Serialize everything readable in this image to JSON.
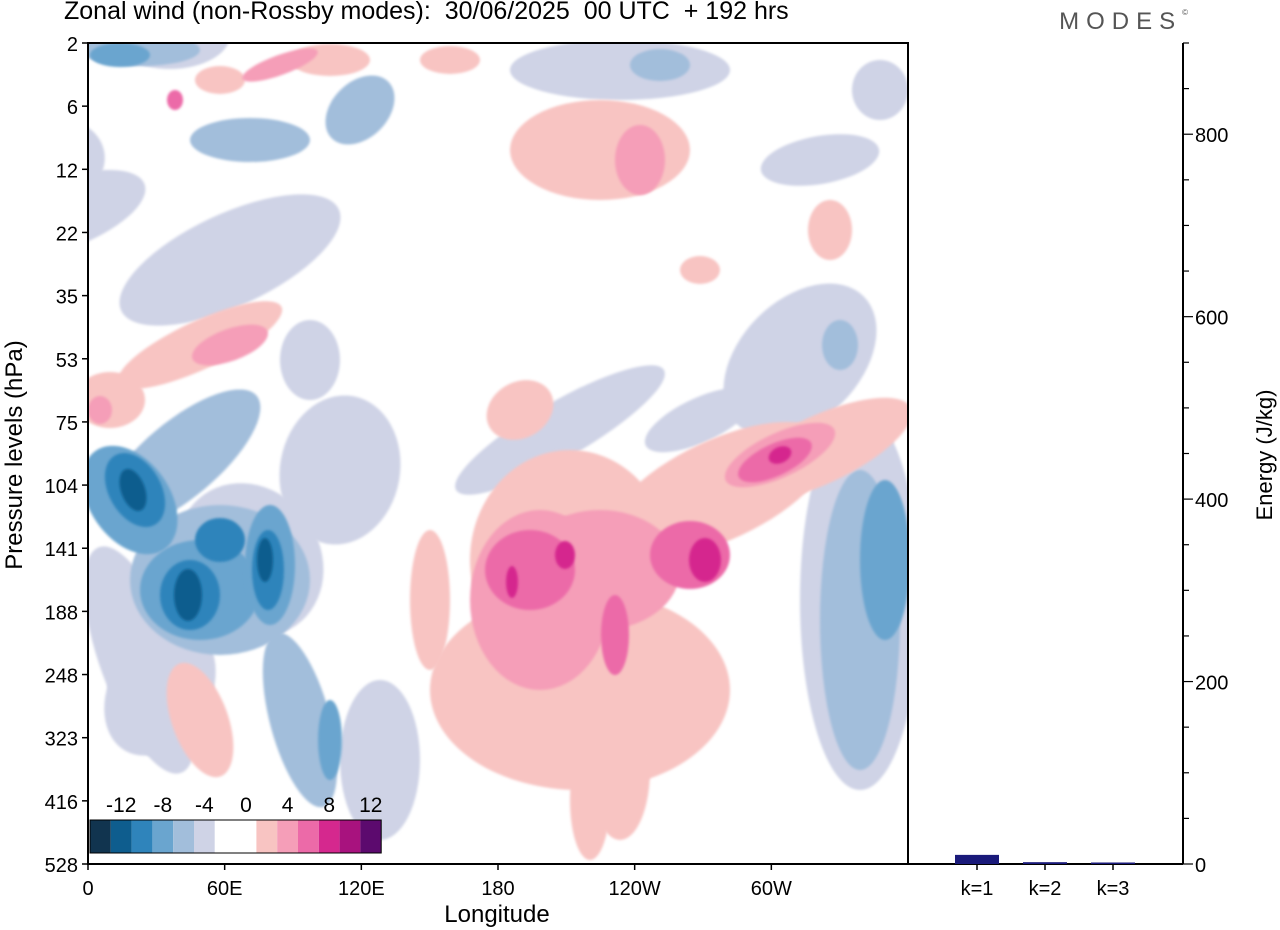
{
  "header": {
    "title": "Zonal wind (non-Rossby modes):  30/06/2025  00 UTC  + 192 hrs",
    "brand": "MODES",
    "brand_mark": "©"
  },
  "colors": {
    "scale": [
      "#11344f",
      "#0e5d8e",
      "#2f84bb",
      "#6aa5cf",
      "#a2bedb",
      "#cfd3e6",
      "#ffffff",
      "#ffffff",
      "#f8c4c2",
      "#f59eb8",
      "#ec6aa8",
      "#d5288e",
      "#a8127e",
      "#5c0a6e"
    ],
    "frame": "#000000",
    "bar": "#1a1a7a"
  },
  "legend": {
    "labels": [
      "-12",
      "-8",
      "-4",
      "0",
      "4",
      "8",
      "12"
    ]
  },
  "chart_data": [
    {
      "type": "heatmap",
      "title": "Zonal wind (non-Rossby modes):  30/06/2025  00 UTC  + 192 hrs",
      "xlabel": "Longitude",
      "ylabel": "Pressure levels (hPa)",
      "x_ticks": [
        "0",
        "60E",
        "120E",
        "180",
        "120W",
        "60W"
      ],
      "x_range_deg": [
        0,
        360
      ],
      "y_ticks": [
        "2",
        "6",
        "12",
        "22",
        "35",
        "53",
        "75",
        "104",
        "141",
        "188",
        "248",
        "323",
        "416",
        "528"
      ],
      "y_scale": "model levels (log-like)",
      "color_levels": [
        -12,
        -8,
        -4,
        0,
        4,
        8,
        12
      ],
      "features": [
        {
          "name": "Easterly core W Indian Ocean",
          "lon": 45,
          "level": "141-188",
          "value": -12
        },
        {
          "name": "Easterly core 70E",
          "lon": 78,
          "level": "141-188",
          "value": -12
        },
        {
          "name": "Easterly core 20E",
          "lon": 20,
          "level": "104",
          "value": -11
        },
        {
          "name": "Westerly jet 180-120W",
          "lon": 190,
          "level": "141-188",
          "value": 9
        },
        {
          "name": "Westerly jet 100W",
          "lon": 275,
          "level": "141",
          "value": 11
        },
        {
          "name": "Westerly jet 60W",
          "lon": 305,
          "level": "104",
          "value": 9
        },
        {
          "name": "Westerly core 120W (lower)",
          "lon": 238,
          "level": "188-248",
          "value": 7
        },
        {
          "name": "Easterly 20W",
          "lon": 340,
          "level": "141-323",
          "value": -6
        }
      ]
    },
    {
      "type": "bar",
      "categories": [
        "k=1",
        "k=2",
        "k=3"
      ],
      "values": [
        10,
        2,
        1
      ],
      "ylabel": "Energy (J/kg)",
      "ylim": [
        0,
        900
      ],
      "y_ticks": [
        0,
        200,
        400,
        600,
        800
      ]
    }
  ]
}
